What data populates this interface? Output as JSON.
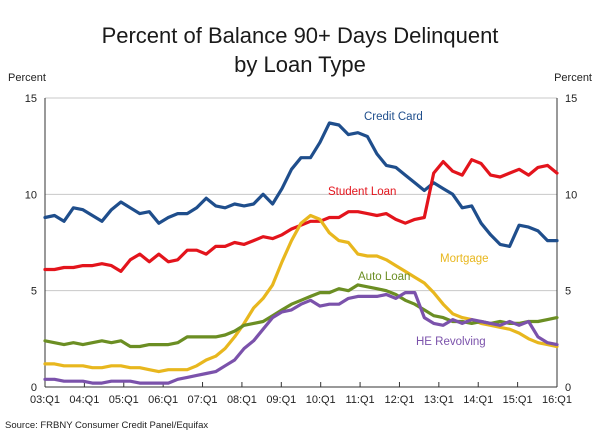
{
  "chart_data": {
    "type": "line",
    "title_line1": "Percent of Balance 90+ Days Delinquent",
    "title_line2": "by Loan Type",
    "ylabel_left": "Percent",
    "ylabel_right": "Percent",
    "ylim": [
      0,
      15
    ],
    "yticks": [
      "0",
      "5",
      "10",
      "15"
    ],
    "xticks": [
      "03:Q1",
      "04:Q1",
      "05:Q1",
      "06:Q1",
      "07:Q1",
      "08:Q1",
      "09:Q1",
      "10:Q1",
      "11:Q1",
      "12:Q1",
      "13:Q1",
      "14:Q1",
      "15:Q1",
      "16:Q1"
    ],
    "x_start": "2003:Q1",
    "x_end": "2016:Q1",
    "grid": "horizontal",
    "source": "Source: FRBNY Consumer Credit Panel/Equifax",
    "series": [
      {
        "name": "Credit Card",
        "color": "#1f4e8c",
        "values": [
          8.8,
          8.9,
          8.6,
          9.3,
          9.2,
          8.9,
          8.6,
          9.2,
          9.6,
          9.3,
          9.0,
          9.1,
          8.5,
          8.8,
          9.0,
          9.0,
          9.3,
          9.8,
          9.4,
          9.3,
          9.5,
          9.4,
          9.5,
          10.0,
          9.5,
          10.3,
          11.3,
          11.9,
          11.9,
          12.7,
          13.7,
          13.6,
          13.1,
          13.2,
          13.0,
          12.1,
          11.5,
          11.4,
          11.0,
          10.6,
          10.2,
          10.6,
          10.3,
          10.0,
          9.3,
          9.4,
          8.5,
          7.9,
          7.4,
          7.3,
          8.4,
          8.3,
          8.1,
          7.6,
          7.6
        ]
      },
      {
        "name": "Student Loan",
        "color": "#e3141c",
        "values": [
          6.1,
          6.1,
          6.2,
          6.2,
          6.3,
          6.3,
          6.4,
          6.3,
          6.0,
          6.6,
          6.9,
          6.5,
          6.9,
          6.5,
          6.6,
          7.1,
          7.1,
          6.9,
          7.3,
          7.3,
          7.5,
          7.4,
          7.6,
          7.8,
          7.7,
          7.9,
          8.2,
          8.4,
          8.6,
          8.6,
          8.8,
          8.8,
          9.1,
          9.1,
          9.0,
          8.9,
          9.0,
          8.7,
          8.5,
          8.7,
          8.8,
          11.1,
          11.7,
          11.2,
          11.0,
          11.8,
          11.6,
          11.0,
          10.9,
          11.1,
          11.3,
          11.0,
          11.4,
          11.5,
          11.1
        ]
      },
      {
        "name": "Mortgage",
        "color": "#e8b71e",
        "values": [
          1.2,
          1.2,
          1.1,
          1.1,
          1.1,
          1.0,
          1.0,
          1.1,
          1.1,
          1.0,
          1.0,
          0.9,
          0.8,
          0.9,
          0.9,
          0.9,
          1.1,
          1.4,
          1.6,
          2.0,
          2.6,
          3.3,
          4.1,
          4.6,
          5.3,
          6.5,
          7.6,
          8.5,
          8.9,
          8.7,
          8.0,
          7.6,
          7.5,
          6.9,
          6.8,
          6.8,
          6.6,
          6.3,
          6.0,
          5.7,
          5.4,
          4.9,
          4.3,
          3.8,
          3.6,
          3.5,
          3.3,
          3.2,
          3.1,
          3.0,
          2.8,
          2.5,
          2.3,
          2.2,
          2.1
        ]
      },
      {
        "name": "Auto Loan",
        "color": "#6b8e23",
        "values": [
          2.4,
          2.3,
          2.2,
          2.3,
          2.2,
          2.3,
          2.4,
          2.3,
          2.4,
          2.1,
          2.1,
          2.2,
          2.2,
          2.2,
          2.3,
          2.6,
          2.6,
          2.6,
          2.6,
          2.7,
          2.9,
          3.2,
          3.3,
          3.4,
          3.7,
          4.0,
          4.3,
          4.5,
          4.7,
          4.9,
          4.9,
          5.1,
          5.0,
          5.3,
          5.2,
          5.1,
          5.0,
          4.8,
          4.5,
          4.3,
          4.0,
          3.7,
          3.6,
          3.4,
          3.4,
          3.3,
          3.4,
          3.3,
          3.4,
          3.3,
          3.3,
          3.4,
          3.4,
          3.5,
          3.6
        ]
      },
      {
        "name": "HE Revolving",
        "color": "#7b52ab",
        "values": [
          0.4,
          0.4,
          0.3,
          0.3,
          0.3,
          0.2,
          0.2,
          0.3,
          0.3,
          0.3,
          0.2,
          0.2,
          0.2,
          0.2,
          0.4,
          0.5,
          0.6,
          0.7,
          0.8,
          1.1,
          1.4,
          2.0,
          2.4,
          3.0,
          3.6,
          3.9,
          4.0,
          4.3,
          4.5,
          4.2,
          4.3,
          4.3,
          4.6,
          4.7,
          4.7,
          4.7,
          4.8,
          4.6,
          4.9,
          4.9,
          3.6,
          3.3,
          3.2,
          3.5,
          3.3,
          3.5,
          3.4,
          3.3,
          3.2,
          3.4,
          3.2,
          3.4,
          2.6,
          2.3,
          2.2
        ]
      }
    ]
  },
  "series_labels": {
    "credit_card": "Credit Card",
    "student_loan": "Student Loan",
    "mortgage": "Mortgage",
    "auto_loan": "Auto Loan",
    "he_revolving": "HE Revolving"
  }
}
